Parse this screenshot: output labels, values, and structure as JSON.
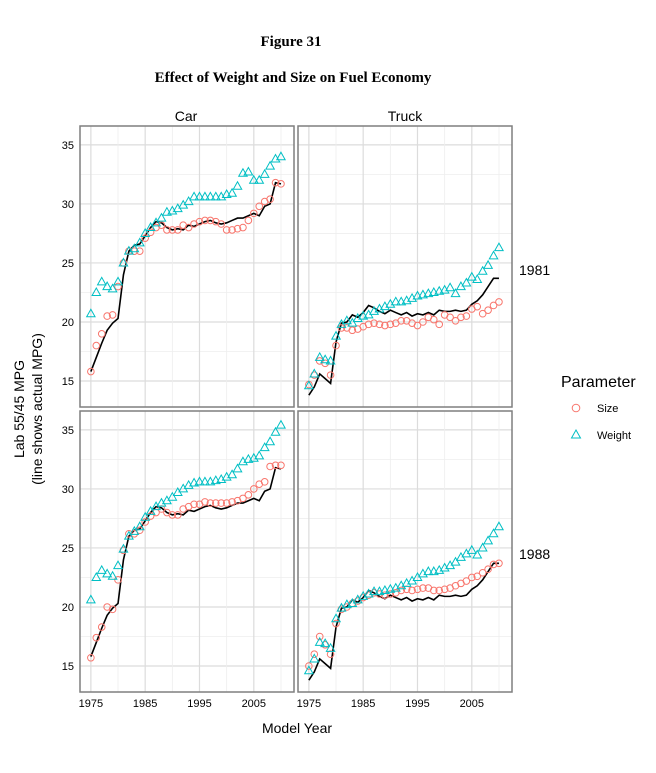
{
  "chart_data": {
    "type": "scatter",
    "title": "Figure 31",
    "subtitle": "Effect of Weight and Size on Fuel Economy",
    "xlabel": "Model Year",
    "ylabel": "Lab 55/45 MPG",
    "ylabel2": "(line shows actual MPG)",
    "columns": [
      "Car",
      "Truck"
    ],
    "rows": [
      "1981",
      "1988"
    ],
    "xlim": [
      1973,
      2012.4
    ],
    "ylim": [
      12.8,
      36.6
    ],
    "xticks": [
      1975,
      1985,
      1995,
      2005
    ],
    "yticks": [
      15,
      20,
      25,
      30,
      35
    ],
    "legend": {
      "title": "Parameter",
      "placement": "right",
      "entries": [
        {
          "name": "Size",
          "shape": "circle",
          "color": "#F8766D"
        },
        {
          "name": "Weight",
          "shape": "triangle",
          "color": "#00BFC4"
        }
      ]
    },
    "line_color": "#000000",
    "x_start": 1975,
    "panels": [
      {
        "row": "1981",
        "col": "Car",
        "actual": [
          15.8,
          17.0,
          18.2,
          19.3,
          19.9,
          20.3,
          24.0,
          26.0,
          26.5,
          26.6,
          27.3,
          28.0,
          28.5,
          28.4,
          28.0,
          27.8,
          27.9,
          27.8,
          28.2,
          28.1,
          28.3,
          28.5,
          28.6,
          28.4,
          28.3,
          28.4,
          28.6,
          28.8,
          28.8,
          29.0,
          29.2,
          29.0,
          29.8,
          30.0,
          31.8,
          31.7
        ],
        "Size": [
          15.8,
          18.0,
          19.0,
          20.5,
          20.6,
          23.0,
          25.0,
          26.0,
          26.0,
          26.0,
          27.1,
          27.6,
          28.0,
          28.2,
          27.8,
          27.8,
          27.8,
          28.2,
          28.0,
          28.3,
          28.5,
          28.6,
          28.6,
          28.5,
          28.3,
          27.8,
          27.8,
          27.9,
          28.0,
          28.6,
          29.2,
          29.8,
          30.2,
          30.4,
          31.8,
          31.7
        ],
        "Weight": [
          20.7,
          22.5,
          23.4,
          23.0,
          22.8,
          23.4,
          25.0,
          26.0,
          26.2,
          26.7,
          27.5,
          28.0,
          28.4,
          28.8,
          29.3,
          29.4,
          29.6,
          29.9,
          30.2,
          30.6,
          30.6,
          30.6,
          30.6,
          30.6,
          30.6,
          30.8,
          30.9,
          31.5,
          32.6,
          32.7,
          32.0,
          32.0,
          32.5,
          33.2,
          33.8,
          34.0
        ]
      },
      {
        "row": "1981",
        "col": "Truck",
        "actual": [
          13.8,
          14.5,
          15.6,
          15.2,
          14.8,
          18.3,
          19.9,
          20.0,
          20.6,
          20.4,
          20.8,
          21.4,
          21.2,
          20.9,
          20.7,
          21.0,
          20.8,
          20.6,
          20.8,
          20.5,
          20.7,
          20.6,
          20.8,
          20.6,
          21.0,
          20.9,
          20.9,
          21.0,
          20.9,
          21.0,
          21.5,
          21.8,
          22.3,
          23.0,
          23.7,
          23.7
        ],
        "Size": [
          14.7,
          15.5,
          16.7,
          16.5,
          15.5,
          18.0,
          19.5,
          19.5,
          19.3,
          19.4,
          19.6,
          19.8,
          19.9,
          19.8,
          19.7,
          19.8,
          19.9,
          20.1,
          20.1,
          19.9,
          19.7,
          20.0,
          20.4,
          20.2,
          19.8,
          20.6,
          20.4,
          20.1,
          20.4,
          20.5,
          21.1,
          21.3,
          20.7,
          21.0,
          21.4,
          21.7
        ],
        "Weight": [
          14.6,
          15.6,
          17.0,
          16.8,
          16.7,
          18.8,
          19.8,
          20.1,
          19.9,
          20.3,
          20.5,
          20.6,
          20.9,
          21.1,
          21.3,
          21.5,
          21.7,
          21.7,
          21.8,
          22.0,
          22.2,
          22.3,
          22.4,
          22.5,
          22.6,
          22.7,
          22.9,
          22.4,
          23.0,
          23.3,
          23.8,
          23.6,
          24.3,
          24.8,
          25.6,
          26.3
        ]
      },
      {
        "row": "1988",
        "col": "Car",
        "actual": [
          15.8,
          17.0,
          18.2,
          19.3,
          19.9,
          20.3,
          24.0,
          26.0,
          26.5,
          26.6,
          27.3,
          28.0,
          28.5,
          28.4,
          28.0,
          27.8,
          27.9,
          27.8,
          28.2,
          28.1,
          28.3,
          28.5,
          28.6,
          28.4,
          28.3,
          28.4,
          28.6,
          28.8,
          28.8,
          29.0,
          29.2,
          29.0,
          29.8,
          30.0,
          31.8,
          31.7
        ],
        "Size": [
          15.7,
          17.4,
          18.3,
          20.0,
          19.8,
          22.3,
          24.8,
          26.2,
          26.2,
          26.5,
          27.2,
          27.7,
          28.0,
          28.3,
          28.0,
          27.8,
          27.8,
          28.3,
          28.5,
          28.7,
          28.7,
          28.9,
          28.8,
          28.8,
          28.8,
          28.8,
          28.9,
          29.0,
          29.2,
          29.5,
          30.0,
          30.4,
          30.6,
          31.9,
          32.0,
          32.0
        ],
        "Weight": [
          20.6,
          22.5,
          23.1,
          22.8,
          22.6,
          23.5,
          24.9,
          26.0,
          26.4,
          26.8,
          27.6,
          28.1,
          28.5,
          28.8,
          29.0,
          29.3,
          29.7,
          30.0,
          30.3,
          30.5,
          30.6,
          30.6,
          30.6,
          30.7,
          30.8,
          31.0,
          31.2,
          31.7,
          32.3,
          32.5,
          32.6,
          32.8,
          33.5,
          34.0,
          34.8,
          35.4
        ]
      },
      {
        "row": "1988",
        "col": "Truck",
        "actual": [
          13.8,
          14.5,
          15.6,
          15.2,
          14.8,
          18.3,
          19.9,
          20.0,
          20.6,
          20.4,
          20.8,
          21.4,
          21.2,
          20.9,
          20.7,
          21.0,
          20.8,
          20.6,
          20.8,
          20.5,
          20.7,
          20.6,
          20.8,
          20.6,
          21.0,
          20.9,
          20.9,
          21.0,
          20.9,
          21.0,
          21.5,
          21.8,
          22.3,
          23.0,
          23.7,
          23.7
        ],
        "Size": [
          15.0,
          16.0,
          17.5,
          16.8,
          16.0,
          18.6,
          19.8,
          20.0,
          20.3,
          20.5,
          20.8,
          21.0,
          21.2,
          21.1,
          21.0,
          21.1,
          21.2,
          21.4,
          21.5,
          21.4,
          21.5,
          21.6,
          21.6,
          21.4,
          21.4,
          21.5,
          21.6,
          21.8,
          22.0,
          22.2,
          22.5,
          22.6,
          22.9,
          23.2,
          23.6,
          23.7
        ],
        "Weight": [
          14.6,
          15.6,
          17.0,
          16.9,
          16.5,
          19.0,
          19.9,
          20.2,
          20.3,
          20.6,
          20.9,
          21.1,
          21.3,
          21.3,
          21.4,
          21.5,
          21.6,
          21.8,
          22.0,
          22.2,
          22.5,
          22.8,
          23.0,
          23.0,
          23.1,
          23.3,
          23.5,
          23.8,
          24.2,
          24.5,
          24.8,
          24.4,
          25.0,
          25.6,
          26.2,
          26.8
        ]
      }
    ]
  }
}
